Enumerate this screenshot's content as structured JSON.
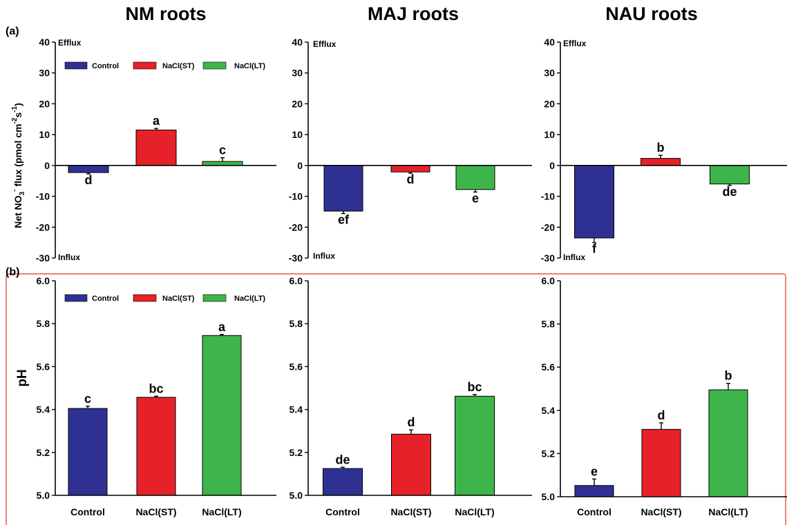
{
  "colors": {
    "control": "#2e3192",
    "nacl_st": "#e62129",
    "nacl_lt": "#3db54a",
    "frame": "#e0302a"
  },
  "panel_labels": {
    "a": "(a)",
    "b": "(b)"
  },
  "column_titles": [
    "NM roots",
    "MAJ roots",
    "NAU roots"
  ],
  "flux_axis": {
    "ylabel_prefix": "Net NO",
    "ylabel_sub": "3",
    "ylabel_sup": "-",
    "ylabel_rest": " flux (pmol cm",
    "ylabel_sup2": "-2",
    "ylabel_s": "s",
    "ylabel_sup3": "-1",
    "ylabel_end": ")",
    "efflux": "Efflux",
    "influx": "Influx"
  },
  "ph_axis": {
    "ylabel": "pH"
  },
  "legend": [
    "Control",
    "NaCl(ST)",
    "NaCl(LT)"
  ],
  "chart_data": [
    {
      "type": "bar",
      "panel": "(a)",
      "title": "NM roots",
      "categories": [
        "Control",
        "NaCl(ST)",
        "NaCl(LT)"
      ],
      "values": [
        -2.3,
        11.5,
        1.3
      ],
      "errors": [
        0.4,
        0.5,
        1.2
      ],
      "letters": [
        "d",
        "a",
        "c"
      ],
      "ylim": [
        -30,
        40
      ],
      "yticks": [
        -30,
        -20,
        -10,
        0,
        10,
        20,
        30,
        40
      ],
      "ylabel": "Net NO3- flux (pmol cm-2s-1)"
    },
    {
      "type": "bar",
      "panel": "(a)",
      "title": "MAJ roots",
      "categories": [
        "Control",
        "NaCl(ST)",
        "NaCl(LT)"
      ],
      "values": [
        -14.8,
        -2.1,
        -7.8
      ],
      "errors": [
        0.8,
        0.4,
        0.8
      ],
      "letters": [
        "ef",
        "d",
        "e"
      ],
      "ylim": [
        -30,
        40
      ],
      "yticks": [
        -30,
        -20,
        -10,
        0,
        10,
        20,
        30,
        40
      ]
    },
    {
      "type": "bar",
      "panel": "(a)",
      "title": "NAU roots",
      "categories": [
        "Control",
        "NaCl(ST)",
        "NaCl(LT)"
      ],
      "values": [
        -23.5,
        2.3,
        -6.0
      ],
      "errors": [
        1.5,
        1.0,
        0.5
      ],
      "letters": [
        "f",
        "b",
        "de"
      ],
      "ylim": [
        -30,
        40
      ],
      "yticks": [
        -30,
        -20,
        -10,
        0,
        10,
        20,
        30,
        40
      ]
    },
    {
      "type": "bar",
      "panel": "(b)",
      "categories": [
        "Control",
        "NaCl(ST)",
        "NaCl(LT)"
      ],
      "values": [
        5.405,
        5.457,
        5.745
      ],
      "errors": [
        0.01,
        0.005,
        0.005
      ],
      "letters": [
        "c",
        "bc",
        "a"
      ],
      "ylim": [
        5.0,
        6.0
      ],
      "yticks": [
        5.0,
        5.2,
        5.4,
        5.6,
        5.8,
        6.0
      ],
      "ylabel": "pH"
    },
    {
      "type": "bar",
      "panel": "(b)",
      "categories": [
        "Control",
        "NaCl(ST)",
        "NaCl(LT)"
      ],
      "values": [
        5.125,
        5.285,
        5.462
      ],
      "errors": [
        0.006,
        0.02,
        0.008
      ],
      "letters": [
        "de",
        "d",
        "bc"
      ],
      "ylim": [
        5.0,
        6.0
      ],
      "yticks": [
        5.0,
        5.2,
        5.4,
        5.6,
        5.8,
        6.0
      ]
    },
    {
      "type": "bar",
      "panel": "(b)",
      "categories": [
        "Control",
        "NaCl(ST)",
        "NaCl(LT)"
      ],
      "values": [
        5.052,
        5.312,
        5.495
      ],
      "errors": [
        0.03,
        0.03,
        0.03
      ],
      "letters": [
        "e",
        "d",
        "b"
      ],
      "ylim": [
        5.0,
        6.0
      ],
      "yticks": [
        5.0,
        5.2,
        5.4,
        5.6,
        5.8,
        6.0
      ]
    }
  ]
}
